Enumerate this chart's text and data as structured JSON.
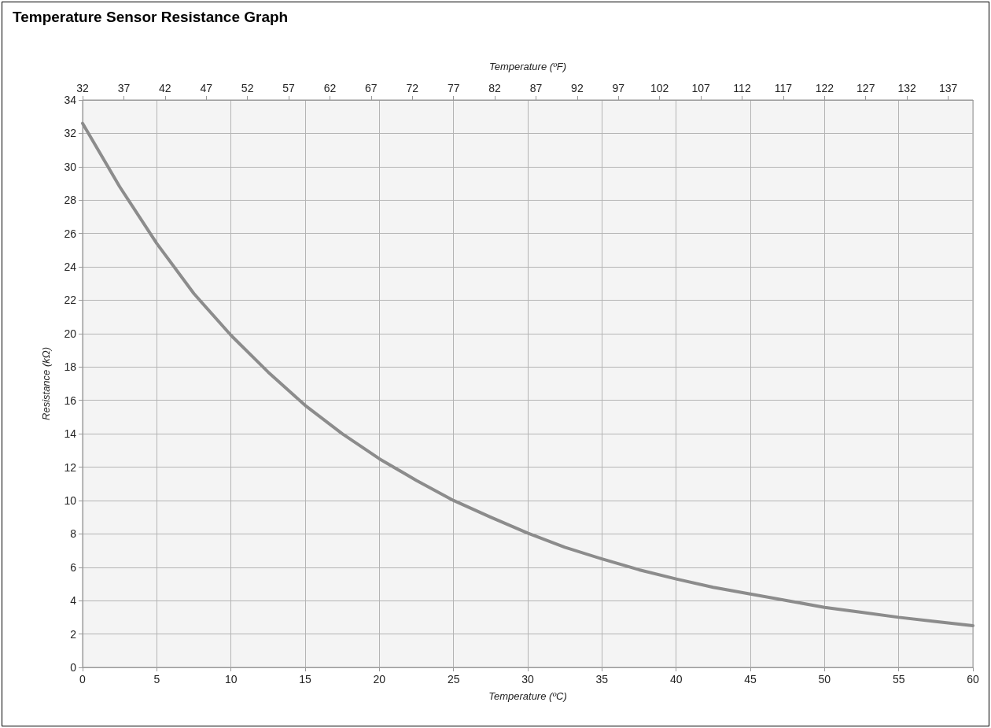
{
  "chart_data": {
    "type": "line",
    "title": "Temperature Sensor Resistance Graph",
    "xlabel": "Temperature (ºC)",
    "ylabel": "Resistance (kΩ)",
    "x2label": "Temperature (ºF)",
    "x": [
      0,
      2.5,
      5,
      7.5,
      10,
      12.5,
      15,
      17.5,
      20,
      22.5,
      25,
      27.5,
      30,
      32.5,
      35,
      37.5,
      40,
      42.5,
      45,
      47.5,
      50,
      52.5,
      55,
      57.5,
      60
    ],
    "series": [
      {
        "color": "#8c8c8c",
        "values": [
          32.6,
          28.8,
          25.4,
          22.4,
          19.9,
          17.7,
          15.7,
          14.0,
          12.5,
          11.2,
          10.0,
          9.0,
          8.05,
          7.2,
          6.5,
          5.85,
          5.3,
          4.8,
          4.4,
          4.0,
          3.6,
          3.3,
          3.0,
          2.75,
          2.5
        ]
      }
    ],
    "xlim": [
      0,
      60
    ],
    "xticks": [
      0,
      5,
      10,
      15,
      20,
      25,
      30,
      35,
      40,
      45,
      50,
      55,
      60
    ],
    "x2lim": [
      32,
      140
    ],
    "x2ticks": [
      32,
      37,
      42,
      47,
      52,
      57,
      62,
      67,
      72,
      77,
      82,
      87,
      92,
      97,
      102,
      107,
      112,
      117,
      122,
      127,
      132,
      137
    ],
    "ylim": [
      0,
      34
    ],
    "yticks": [
      0,
      2,
      4,
      6,
      8,
      10,
      12,
      14,
      16,
      18,
      20,
      22,
      24,
      26,
      28,
      30,
      32,
      34
    ],
    "grid": true,
    "marker": "none",
    "line_style": "solid"
  }
}
